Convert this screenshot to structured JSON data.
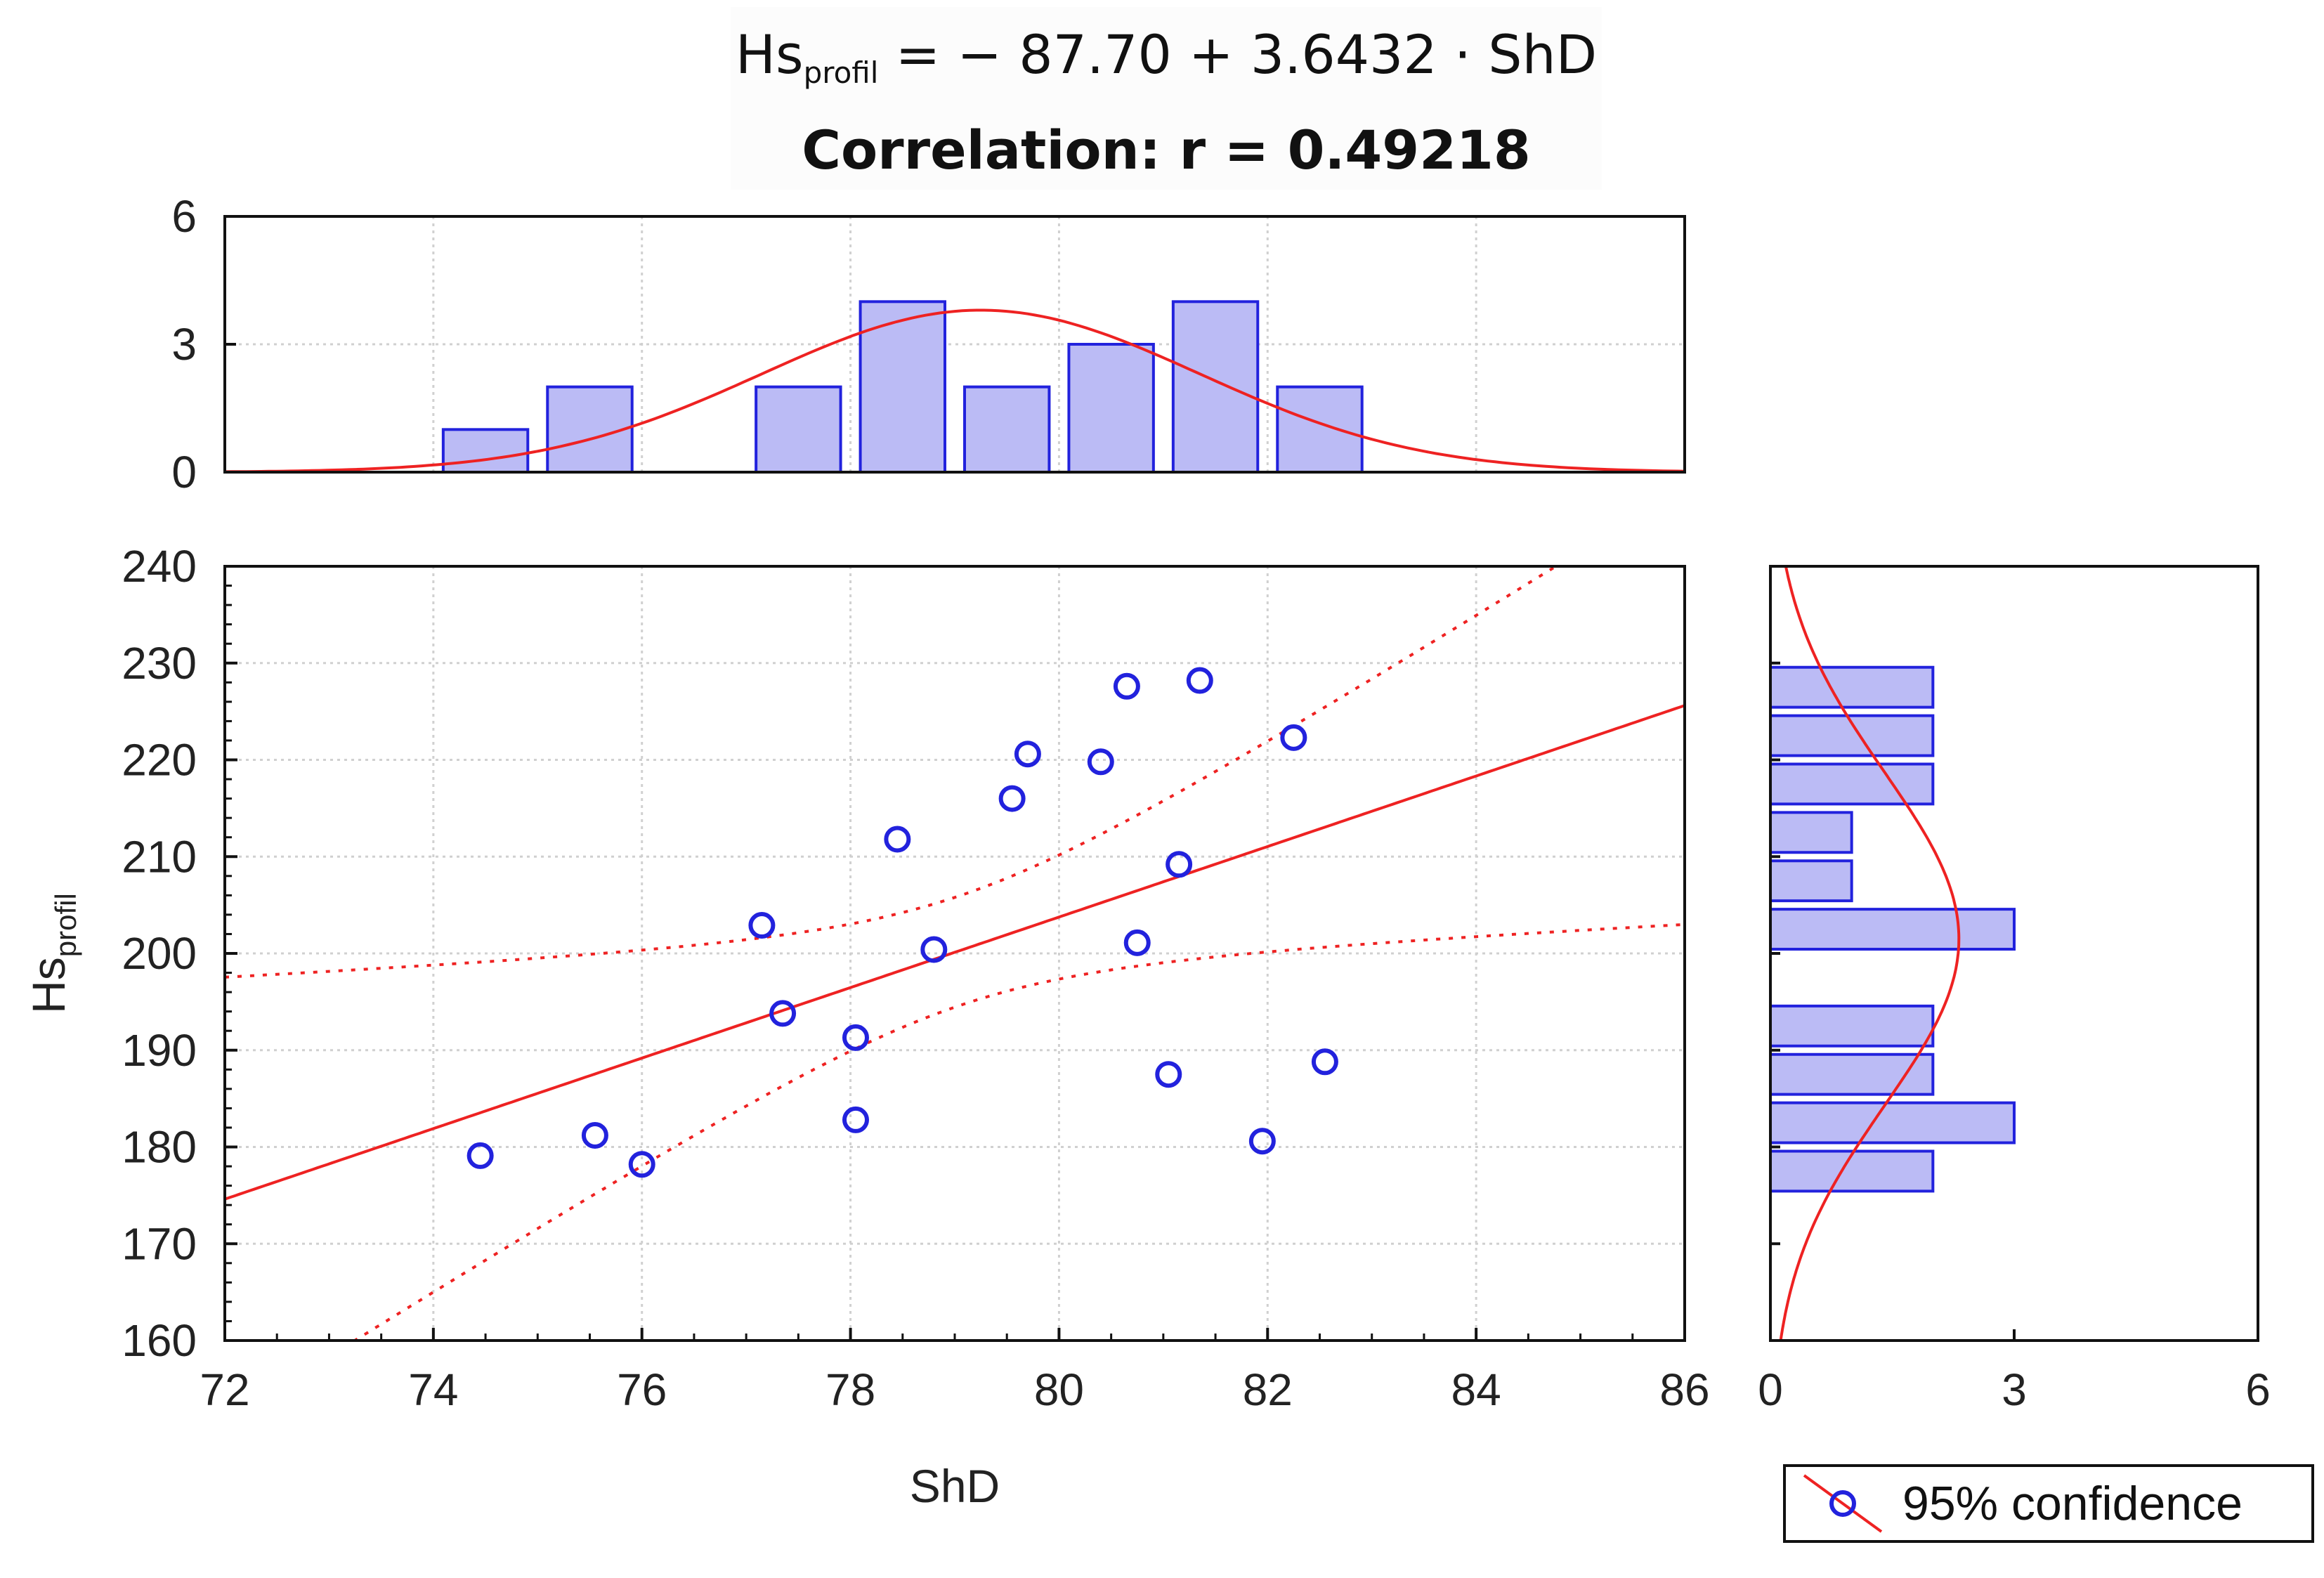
{
  "title": {
    "eq_lhs": "Hs",
    "eq_sub": "profil",
    "eq_rhs": " = − 87.70 + 3.6432 · ShD",
    "correlation": "Correlation: r = 0.49218"
  },
  "colors": {
    "points": "#2222dd",
    "bars_fill": "#bbbbf5",
    "bars_edge": "#2222dd",
    "fit": "#ee2222",
    "grid": "#d0d0d0",
    "axis": "#111111"
  },
  "chart_data": [
    {
      "type": "scatter",
      "name": "main-scatter",
      "xlabel": "ShD",
      "ylabel_main": "Hs",
      "ylabel_sub": "profil",
      "xlim": [
        72,
        86
      ],
      "ylim": [
        160,
        240
      ],
      "xticks": [
        72,
        74,
        76,
        78,
        80,
        82,
        84,
        86
      ],
      "yticks": [
        160,
        170,
        180,
        190,
        200,
        210,
        220,
        230,
        240
      ],
      "grid": true,
      "points": [
        [
          74.45,
          179.1
        ],
        [
          75.55,
          181.2
        ],
        [
          76.0,
          178.2
        ],
        [
          77.15,
          202.9
        ],
        [
          77.35,
          193.8
        ],
        [
          78.05,
          191.3
        ],
        [
          78.05,
          182.8
        ],
        [
          78.45,
          211.8
        ],
        [
          78.8,
          200.4
        ],
        [
          79.55,
          216.0
        ],
        [
          79.7,
          220.6
        ],
        [
          80.4,
          219.8
        ],
        [
          80.65,
          227.6
        ],
        [
          80.75,
          201.1
        ],
        [
          81.05,
          187.5
        ],
        [
          81.15,
          209.2
        ],
        [
          81.35,
          228.2
        ],
        [
          81.95,
          180.6
        ],
        [
          82.25,
          222.3
        ],
        [
          82.55,
          188.8
        ]
      ],
      "fit": {
        "intercept": -87.7,
        "slope": 3.6432
      },
      "confidence_band": {
        "center_x": 79.05,
        "se_at_mean": 2.7,
        "sxx": 128.3,
        "t": 2.1
      },
      "legend": "95% confidence",
      "legend_position": "bottom-right"
    },
    {
      "type": "bar",
      "name": "top-histogram-ShD",
      "bin_edges": [
        72,
        73,
        74,
        75,
        76,
        77,
        78,
        79,
        80,
        81,
        82,
        83,
        84,
        85,
        86
      ],
      "counts": [
        0,
        0,
        1,
        2,
        0,
        2,
        4,
        2,
        3,
        4,
        2,
        0,
        0,
        0
      ],
      "ylim": [
        0,
        6
      ],
      "yticks": [
        0,
        3,
        6
      ],
      "normal_fit": {
        "mean": 79.25,
        "sd": 2.1,
        "n": 20,
        "bin_width": 1
      }
    },
    {
      "type": "bar",
      "name": "right-histogram-Hs",
      "orientation": "horizontal",
      "bins": [
        [
          225,
          230,
          2
        ],
        [
          220,
          225,
          2
        ],
        [
          215,
          220,
          2
        ],
        [
          210,
          215,
          1
        ],
        [
          205,
          210,
          1
        ],
        [
          200,
          205,
          3
        ],
        [
          195,
          200,
          0
        ],
        [
          190,
          195,
          2
        ],
        [
          185,
          190,
          2
        ],
        [
          180,
          185,
          3
        ],
        [
          175,
          180,
          2
        ]
      ],
      "xlim": [
        0,
        6
      ],
      "xticks": [
        0,
        3,
        6
      ],
      "normal_fit": {
        "mean": 201.5,
        "sd": 17.2,
        "n": 20,
        "bin_width": 5
      }
    }
  ]
}
